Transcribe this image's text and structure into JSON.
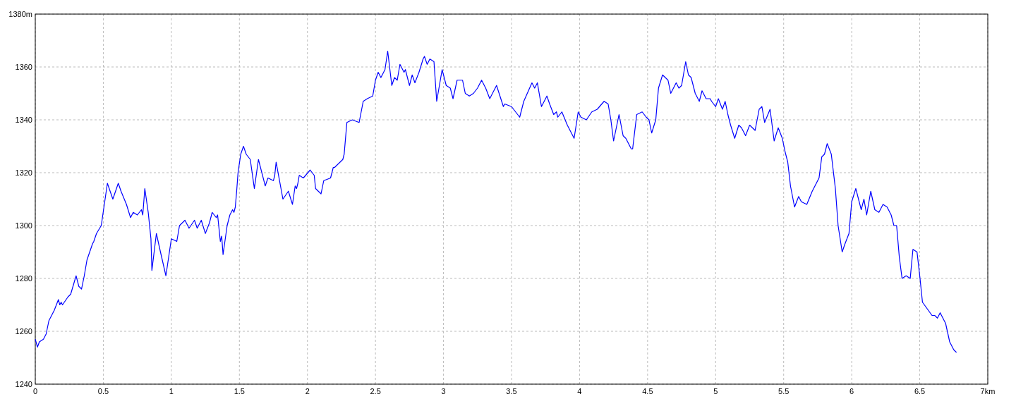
{
  "chart_data": {
    "type": "line",
    "x": [
      0,
      0.016,
      0.03,
      0.06,
      0.08,
      0.1,
      0.14,
      0.17,
      0.18,
      0.19,
      0.2,
      0.24,
      0.26,
      0.3,
      0.32,
      0.34,
      0.36,
      0.38,
      0.42,
      0.43,
      0.45,
      0.485,
      0.53,
      0.57,
      0.61,
      0.63,
      0.67,
      0.7,
      0.72,
      0.75,
      0.78,
      0.79,
      0.805,
      0.83,
      0.85,
      0.857,
      0.89,
      0.92,
      0.96,
      1.0,
      1.04,
      1.06,
      1.1,
      1.13,
      1.17,
      1.19,
      1.22,
      1.25,
      1.28,
      1.3,
      1.33,
      1.34,
      1.36,
      1.37,
      1.38,
      1.41,
      1.43,
      1.45,
      1.46,
      1.47,
      1.48,
      1.49,
      1.51,
      1.53,
      1.55,
      1.58,
      1.61,
      1.64,
      1.69,
      1.71,
      1.75,
      1.76,
      1.77,
      1.82,
      1.86,
      1.89,
      1.91,
      1.92,
      1.93,
      1.94,
      1.97,
      2.02,
      2.05,
      2.06,
      2.1,
      2.12,
      2.17,
      2.19,
      2.2,
      2.26,
      2.27,
      2.29,
      2.33,
      2.38,
      2.41,
      2.44,
      2.48,
      2.5,
      2.52,
      2.54,
      2.57,
      2.59,
      2.62,
      2.64,
      2.66,
      2.68,
      2.71,
      2.72,
      2.75,
      2.77,
      2.79,
      2.82,
      2.85,
      2.86,
      2.88,
      2.9,
      2.93,
      2.95,
      2.99,
      3.02,
      3.05,
      3.07,
      3.1,
      3.14,
      3.16,
      3.19,
      3.22,
      3.25,
      3.28,
      3.31,
      3.34,
      3.36,
      3.39,
      3.44,
      3.45,
      3.5,
      3.56,
      3.59,
      3.65,
      3.67,
      3.69,
      3.72,
      3.76,
      3.78,
      3.81,
      3.83,
      3.84,
      3.87,
      3.91,
      3.94,
      3.96,
      3.99,
      4.01,
      4.05,
      4.09,
      4.13,
      4.18,
      4.21,
      4.23,
      4.25,
      4.29,
      4.32,
      4.34,
      4.38,
      4.39,
      4.42,
      4.46,
      4.49,
      4.51,
      4.53,
      4.56,
      4.58,
      4.61,
      4.65,
      4.67,
      4.71,
      4.73,
      4.75,
      4.78,
      4.8,
      4.82,
      4.85,
      4.88,
      4.9,
      4.93,
      4.96,
      4.97,
      5.0,
      5.02,
      5.05,
      5.07,
      5.09,
      5.11,
      5.14,
      5.17,
      5.19,
      5.22,
      5.25,
      5.29,
      5.32,
      5.34,
      5.36,
      5.4,
      5.43,
      5.46,
      5.49,
      5.51,
      5.53,
      5.55,
      5.58,
      5.61,
      5.63,
      5.67,
      5.71,
      5.76,
      5.78,
      5.8,
      5.82,
      5.85,
      5.88,
      5.9,
      5.93,
      5.95,
      5.98,
      6.0,
      6.03,
      6.07,
      6.09,
      6.11,
      6.14,
      6.17,
      6.2,
      6.23,
      6.26,
      6.29,
      6.31,
      6.33,
      6.35,
      6.37,
      6.4,
      6.43,
      6.45,
      6.48,
      6.5,
      6.52,
      6.59,
      6.61,
      6.63,
      6.65,
      6.69,
      6.72,
      6.75,
      6.77
    ],
    "series": [
      {
        "color": "#0000ff",
        "values": [
          1257,
          1254,
          1256,
          1257,
          1259,
          1264,
          1268,
          1272,
          1270,
          1271,
          1270,
          1273,
          1274,
          1281,
          1277,
          1276,
          1281,
          1287,
          1293,
          1294,
          1297,
          1300,
          1316,
          1310,
          1316,
          1313,
          1308,
          1303,
          1305,
          1304,
          1306,
          1304,
          1314,
          1305,
          1295,
          1283,
          1297,
          1290,
          1281,
          1295,
          1294,
          1300,
          1302,
          1299,
          1302,
          1299,
          1302,
          1297,
          1301,
          1305,
          1303,
          1304,
          1294,
          1296,
          1289,
          1300,
          1304,
          1306,
          1305,
          1307,
          1313,
          1320,
          1327,
          1330,
          1327,
          1325,
          1314,
          1325,
          1315,
          1318,
          1317,
          1319,
          1324,
          1310,
          1313,
          1308,
          1315,
          1314,
          1316,
          1319,
          1318,
          1321,
          1319,
          1314,
          1312,
          1317,
          1318,
          1322,
          1322,
          1325,
          1327,
          1339,
          1340,
          1339,
          1347,
          1348,
          1349,
          1355,
          1358,
          1356,
          1359,
          1366,
          1353,
          1356,
          1355,
          1361,
          1358,
          1359,
          1353,
          1357,
          1354,
          1358,
          1363,
          1364,
          1361,
          1363,
          1362,
          1347,
          1359,
          1353,
          1352,
          1348,
          1355,
          1355,
          1350,
          1349,
          1350,
          1352,
          1355,
          1352,
          1348,
          1350,
          1353,
          1345,
          1346,
          1345,
          1341,
          1347,
          1354,
          1352,
          1354,
          1345,
          1349,
          1346,
          1342,
          1343,
          1341,
          1343,
          1338,
          1335,
          1333,
          1343,
          1341,
          1340,
          1343,
          1344,
          1347,
          1346,
          1340,
          1332,
          1342,
          1334,
          1333,
          1329,
          1329,
          1342,
          1343,
          1341,
          1340,
          1335,
          1340,
          1352,
          1357,
          1355,
          1350,
          1354,
          1352,
          1353,
          1362,
          1357,
          1356,
          1350,
          1347,
          1351,
          1348,
          1348,
          1347,
          1345,
          1348,
          1344,
          1347,
          1342,
          1338,
          1333,
          1338,
          1337,
          1334,
          1338,
          1336,
          1344,
          1345,
          1339,
          1344,
          1332,
          1337,
          1333,
          1328,
          1324,
          1315,
          1307,
          1311,
          1309,
          1308,
          1313,
          1318,
          1326,
          1327,
          1331,
          1327,
          1314,
          1300,
          1290,
          1293,
          1297,
          1309,
          1314,
          1306,
          1310,
          1304,
          1313,
          1306,
          1305,
          1308,
          1307,
          1304,
          1300,
          1300,
          1288,
          1280,
          1281,
          1280,
          1291,
          1290,
          1281,
          1271,
          1266,
          1266,
          1265,
          1267,
          1263,
          1256,
          1253,
          1252
        ]
      }
    ],
    "xlim": [
      0,
      7
    ],
    "xticks": [
      0,
      0.5,
      1,
      1.5,
      2,
      2.5,
      3,
      3.5,
      4,
      4.5,
      5,
      5.5,
      6,
      6.5,
      {
        "value": 7,
        "label": "7km"
      }
    ],
    "ylim": [
      1240,
      1380
    ],
    "yticks": [
      1240,
      1260,
      1280,
      1300,
      1320,
      1340,
      1360,
      {
        "value": 1380,
        "label": "1380m"
      }
    ],
    "grid": true,
    "line_style": "solid",
    "marker": "none"
  }
}
